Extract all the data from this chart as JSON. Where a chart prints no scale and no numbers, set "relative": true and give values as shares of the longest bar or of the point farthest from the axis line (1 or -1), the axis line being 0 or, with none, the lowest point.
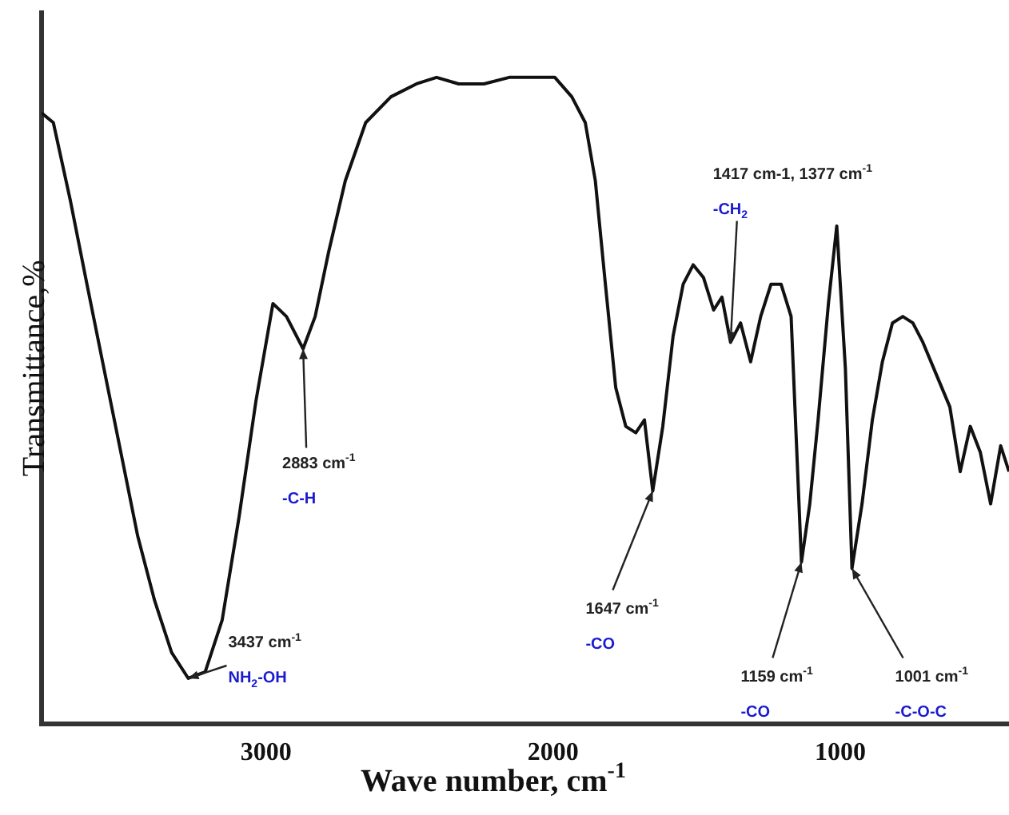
{
  "chart_data": {
    "type": "line",
    "relative": true,
    "xlabel": "Wave number, cm$^{-1}$",
    "ylabel": "Transmittance,%",
    "xlim": [
      3782,
      412
    ],
    "xticks": [
      3000,
      2000,
      1000
    ],
    "grid": false,
    "legend": false,
    "marker": "none",
    "line_style": "solid",
    "x": [
      3782,
      3741,
      3682,
      3624,
      3565,
      3506,
      3447,
      3388,
      3329,
      3271,
      3212,
      3153,
      3094,
      3035,
      2976,
      2929,
      2871,
      2829,
      2782,
      2724,
      2653,
      2565,
      2476,
      2406,
      2329,
      2241,
      2153,
      2065,
      1994,
      1935,
      1888,
      1853,
      1818,
      1782,
      1747,
      1712,
      1682,
      1653,
      1618,
      1582,
      1547,
      1512,
      1476,
      1441,
      1412,
      1382,
      1347,
      1312,
      1277,
      1241,
      1206,
      1171,
      1135,
      1106,
      1077,
      1041,
      1012,
      982,
      959,
      924,
      888,
      853,
      818,
      782,
      747,
      712,
      665,
      618,
      582,
      547,
      512,
      476,
      441,
      412
    ],
    "series": [
      {
        "color": "#111111",
        "values": [
          0.945,
          0.93,
          0.81,
          0.68,
          0.55,
          0.42,
          0.29,
          0.19,
          0.11,
          0.07,
          0.08,
          0.16,
          0.32,
          0.5,
          0.65,
          0.63,
          0.58,
          0.63,
          0.73,
          0.84,
          0.93,
          0.97,
          0.99,
          1,
          0.99,
          0.99,
          1,
          1,
          1,
          0.97,
          0.93,
          0.84,
          0.68,
          0.52,
          0.46,
          0.45,
          0.47,
          0.36,
          0.46,
          0.6,
          0.68,
          0.71,
          0.69,
          0.64,
          0.66,
          0.59,
          0.62,
          0.56,
          0.63,
          0.68,
          0.68,
          0.63,
          0.25,
          0.34,
          0.47,
          0.65,
          0.77,
          0.55,
          0.24,
          0.34,
          0.47,
          0.56,
          0.62,
          0.63,
          0.62,
          0.59,
          0.54,
          0.49,
          0.39,
          0.46,
          0.42,
          0.34,
          0.43,
          0.39
        ]
      }
    ],
    "annotations": [
      {
        "text": "3437 cm$^{-1}$",
        "x": 3271,
        "y": 0.07
      },
      "NH$_{2}$-OH",
      {
        "text": "2883 cm$^{-1}$",
        "x": 2871,
        "y": 0.58
      },
      "-C-H",
      {
        "text": "1647 cm$^{-1}$",
        "x": 1653,
        "y": 0.36
      },
      "-CO",
      "1417 cm-1, 1377 cm$^{-1}$",
      {
        "text": "-CH$_{2}$",
        "x": 1382,
        "y": 0.59
      },
      {
        "text": "1159 cm$^{-1}$",
        "x": 1135,
        "y": 0.25
      },
      "-CO",
      {
        "text": "1001 cm$^{-1}$",
        "x": 959,
        "y": 0.24
      },
      "-C-O-C"
    ]
  }
}
